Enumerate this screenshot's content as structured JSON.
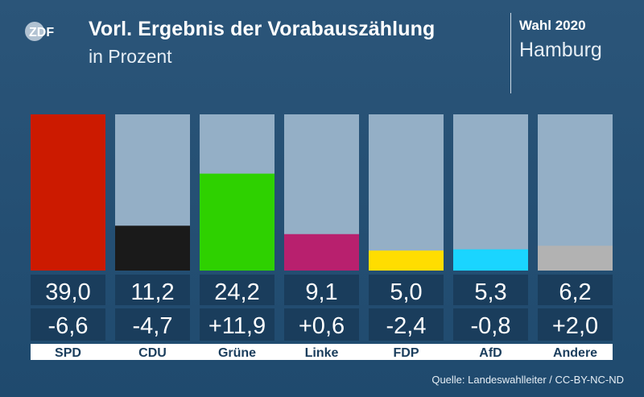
{
  "brand": {
    "logo_text": "ZDF"
  },
  "header": {
    "title": "Vorl. Ergebnis der Vorabauszählung",
    "subtitle": "in Prozent",
    "election": "Wahl 2020",
    "region": "Hamburg"
  },
  "footer": {
    "source": "Quelle: Landeswahlleiter / CC-BY-NC-ND"
  },
  "colors": {
    "background": "#24506f",
    "bar_track": "#94afc6",
    "value_box": "#1a3d5c",
    "label_box": "#ffffff",
    "label_text": "#1a3d5c"
  },
  "chart_data": {
    "type": "bar",
    "title": "Vorl. Ergebnis der Vorabauszählung",
    "subtitle": "in Prozent",
    "ylim": [
      0,
      39
    ],
    "categories": [
      "SPD",
      "CDU",
      "Grüne",
      "Linke",
      "FDP",
      "AfD",
      "Andere"
    ],
    "values": [
      39.0,
      11.2,
      24.2,
      9.1,
      5.0,
      5.3,
      6.2
    ],
    "value_labels": [
      "39,0",
      "11,2",
      "24,2",
      "9,1",
      "5,0",
      "5,3",
      "6,2"
    ],
    "change_labels": [
      "-6,6",
      "-4,7",
      "+11,9",
      "+0,6",
      "-2,4",
      "-0,8",
      "+2,0"
    ],
    "bar_colors": [
      "#cc1a00",
      "#1a1a1a",
      "#2ed100",
      "#b8206e",
      "#ffdd00",
      "#1ad5ff",
      "#b2b2b2"
    ]
  }
}
